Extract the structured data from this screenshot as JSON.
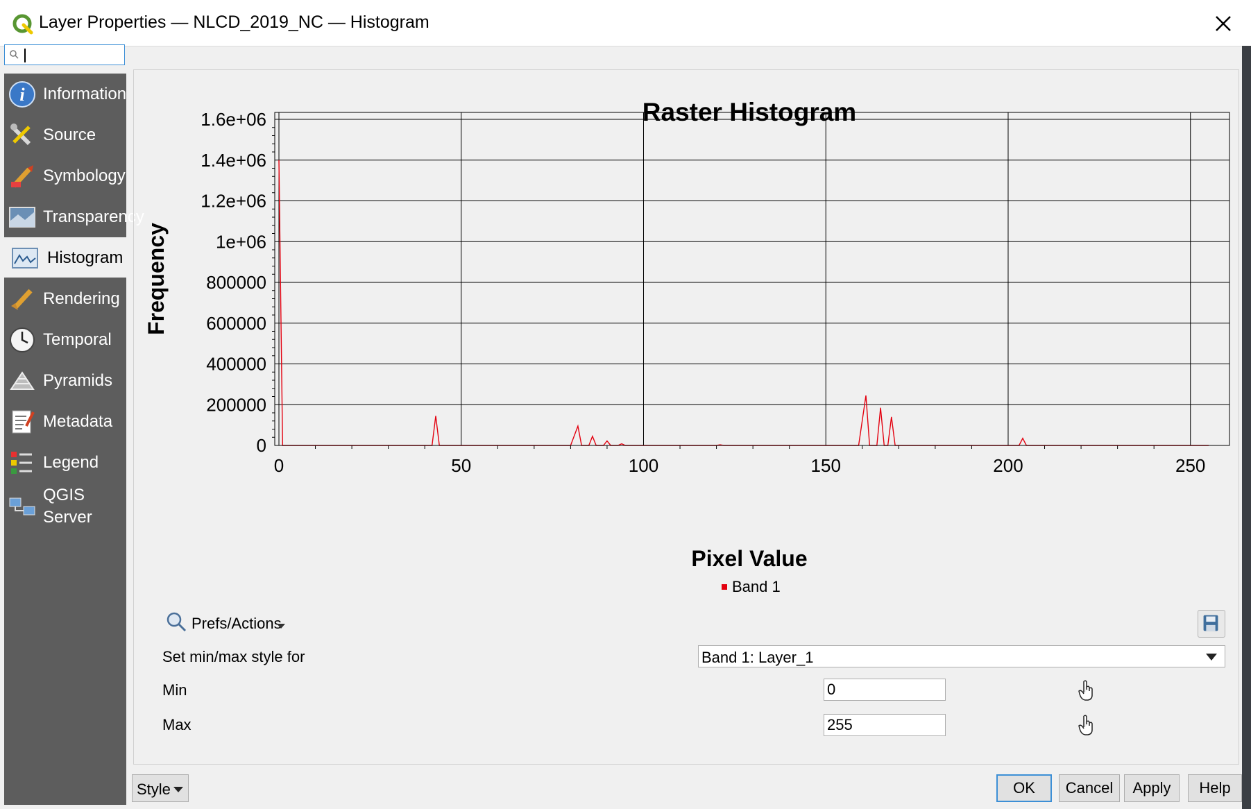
{
  "window": {
    "title": "Layer Properties — NLCD_2019_NC — Histogram"
  },
  "search": {
    "placeholder": "",
    "value": ""
  },
  "sidebar": {
    "items": [
      {
        "label": "Information",
        "icon": "information-icon"
      },
      {
        "label": "Source",
        "icon": "source-wrench-icon"
      },
      {
        "label": "Symbology",
        "icon": "symbology-brush-icon"
      },
      {
        "label": "Transparency",
        "icon": "transparency-icon"
      },
      {
        "label": "Histogram",
        "icon": "histogram-icon",
        "selected": true
      },
      {
        "label": "Rendering",
        "icon": "rendering-brush-icon"
      },
      {
        "label": "Temporal",
        "icon": "clock-icon"
      },
      {
        "label": "Pyramids",
        "icon": "pyramids-icon"
      },
      {
        "label": "Metadata",
        "icon": "metadata-icon"
      },
      {
        "label": "Legend",
        "icon": "legend-icon"
      },
      {
        "label": "QGIS\nServer",
        "icon": "server-icon"
      }
    ]
  },
  "chart_data": {
    "type": "line",
    "title": "Raster Histogram",
    "xlabel": "Pixel Value",
    "ylabel": "Frequency",
    "xlim": [
      0,
      255
    ],
    "ylim": [
      0,
      1600000
    ],
    "x_ticks": [
      "0",
      "50",
      "100",
      "150",
      "200",
      "250"
    ],
    "y_ticks": [
      "0",
      "200000",
      "400000",
      "600000",
      "800000",
      "1e+06",
      "1.2e+06",
      "1.4e+06",
      "1.6e+06"
    ],
    "grid": true,
    "legend_placement": "bottom-center",
    "series": [
      {
        "name": "Band 1",
        "color": "#e3000f",
        "points": [
          [
            0,
            1400000
          ],
          [
            1,
            0
          ],
          [
            42,
            0
          ],
          [
            43,
            145000
          ],
          [
            44,
            0
          ],
          [
            80,
            0
          ],
          [
            82,
            95000
          ],
          [
            83,
            0
          ],
          [
            85,
            0
          ],
          [
            86,
            45000
          ],
          [
            87,
            0
          ],
          [
            89,
            0
          ],
          [
            90,
            22000
          ],
          [
            91,
            0
          ],
          [
            93,
            0
          ],
          [
            94,
            8000
          ],
          [
            95,
            0
          ],
          [
            120,
            0
          ],
          [
            121,
            3000
          ],
          [
            122,
            0
          ],
          [
            159,
            0
          ],
          [
            161,
            245000
          ],
          [
            162,
            0
          ],
          [
            164,
            0
          ],
          [
            165,
            185000
          ],
          [
            166,
            0
          ],
          [
            167,
            0
          ],
          [
            168,
            140000
          ],
          [
            169,
            0
          ],
          [
            203,
            0
          ],
          [
            204,
            35000
          ],
          [
            205,
            0
          ],
          [
            255,
            0
          ]
        ]
      }
    ]
  },
  "prefs": {
    "label": "Prefs/Actions"
  },
  "form": {
    "minmax_label": "Set min/max style for",
    "band_select": "Band 1: Layer_1",
    "min_label": "Min",
    "min_value": "0",
    "max_label": "Max",
    "max_value": "255"
  },
  "buttons": {
    "style": "Style",
    "ok": "OK",
    "cancel": "Cancel",
    "apply": "Apply",
    "help": "Help"
  },
  "colors": {
    "accent": "#3c8fd6",
    "sidebar": "#5d5d5d",
    "series": "#e3000f"
  }
}
